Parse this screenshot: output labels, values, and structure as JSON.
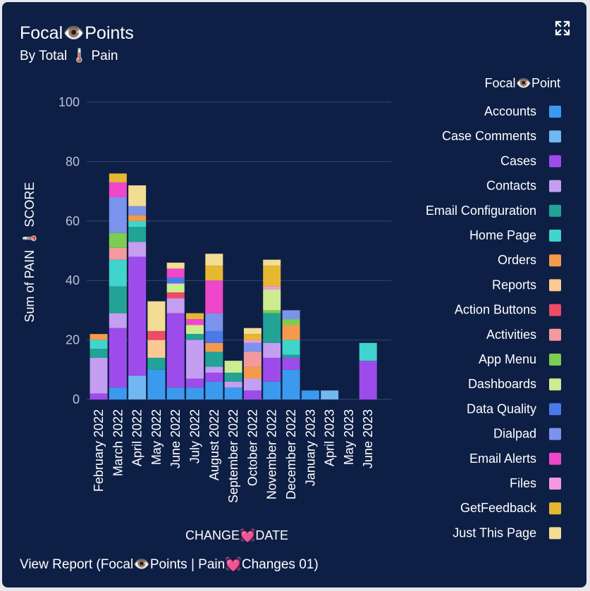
{
  "card": {
    "title": "Focal👁️Points",
    "subtitle": "By Total 🌡️ Pain",
    "expand_icon": "expand-icon",
    "footer_link": "View Report (Focal👁️Points | Pain💓Changes 01)"
  },
  "chart_data": {
    "type": "bar",
    "stacked": true,
    "xlabel": "CHANGE💓DATE",
    "ylabel": "Sum of PAIN 🌡️ SCORE",
    "ylim": [
      0,
      100
    ],
    "yticks": [
      0,
      20,
      40,
      60,
      80,
      100
    ],
    "grid": true,
    "legend_title": "Focal👁️Point",
    "legend_position": "right",
    "categories": [
      "February 2022",
      "March 2022",
      "April 2022",
      "May 2022",
      "June 2022",
      "July 2022",
      "August 2022",
      "September 2022",
      "October 2022",
      "November 2022",
      "December 2022",
      "January 2023",
      "April 2023",
      "May 2023",
      "June 2023"
    ],
    "series": [
      {
        "name": "Accounts",
        "color": "#3b9aee",
        "values": [
          0,
          4,
          0,
          10,
          4,
          4,
          6,
          4,
          0,
          6,
          10,
          3,
          0,
          0,
          0
        ]
      },
      {
        "name": "Case Comments",
        "color": "#71b8f2",
        "values": [
          0,
          0,
          8,
          0,
          0,
          0,
          0,
          0,
          0,
          0,
          0,
          0,
          3,
          0,
          0
        ]
      },
      {
        "name": "Cases",
        "color": "#9d4ceb",
        "values": [
          2,
          20,
          40,
          0,
          25,
          3,
          3,
          0,
          3,
          8,
          4,
          0,
          0,
          0,
          13
        ]
      },
      {
        "name": "Contacts",
        "color": "#c49ef0",
        "values": [
          12,
          5,
          5,
          0,
          5,
          13,
          2,
          2,
          4,
          5,
          0,
          0,
          0,
          0,
          0
        ]
      },
      {
        "name": "Email Configuration",
        "color": "#21a396",
        "values": [
          3,
          9,
          5,
          4,
          0,
          2,
          5,
          3,
          0,
          10,
          1,
          0,
          0,
          0,
          0
        ]
      },
      {
        "name": "Home Page",
        "color": "#40d4cc",
        "values": [
          3,
          9,
          2,
          0,
          0,
          0,
          0,
          0,
          0,
          0,
          5,
          0,
          0,
          0,
          6
        ]
      },
      {
        "name": "Orders",
        "color": "#f59a4c",
        "values": [
          2,
          0,
          2,
          0,
          0,
          0,
          3,
          0,
          4,
          0,
          5,
          0,
          0,
          0,
          0
        ]
      },
      {
        "name": "Reports",
        "color": "#fbc994",
        "values": [
          0,
          0,
          0,
          6,
          0,
          0,
          0,
          0,
          0,
          0,
          0,
          0,
          0,
          0,
          0
        ]
      },
      {
        "name": "Action Buttons",
        "color": "#ee4b65",
        "values": [
          0,
          0,
          0,
          3,
          2,
          0,
          0,
          0,
          0,
          0,
          0,
          0,
          0,
          0,
          0
        ]
      },
      {
        "name": "Activities",
        "color": "#f49a9e",
        "values": [
          0,
          4,
          0,
          0,
          0,
          0,
          0,
          0,
          5,
          0,
          0,
          0,
          0,
          0,
          0
        ]
      },
      {
        "name": "App Menu",
        "color": "#7ccd52",
        "values": [
          0,
          5,
          0,
          0,
          0,
          0,
          0,
          0,
          0,
          1,
          2,
          0,
          0,
          0,
          0
        ]
      },
      {
        "name": "Dashboards",
        "color": "#cdec90",
        "values": [
          0,
          0,
          0,
          0,
          3,
          3,
          0,
          4,
          0,
          7,
          0,
          0,
          0,
          0,
          0
        ]
      },
      {
        "name": "Data Quality",
        "color": "#4c79e8",
        "values": [
          0,
          0,
          0,
          0,
          2,
          0,
          4,
          0,
          0,
          0,
          0,
          0,
          0,
          0,
          0
        ]
      },
      {
        "name": "Dialpad",
        "color": "#7b93ec",
        "values": [
          0,
          12,
          3,
          0,
          0,
          0,
          6,
          0,
          3,
          0,
          3,
          0,
          0,
          0,
          0
        ]
      },
      {
        "name": "Email Alerts",
        "color": "#ef47c9",
        "values": [
          0,
          5,
          0,
          0,
          3,
          2,
          11,
          0,
          0,
          0,
          0,
          0,
          0,
          0,
          0
        ]
      },
      {
        "name": "Files",
        "color": "#f598e0",
        "values": [
          0,
          0,
          0,
          0,
          0,
          0,
          0,
          0,
          1,
          1,
          0,
          0,
          0,
          0,
          0
        ]
      },
      {
        "name": "GetFeedback",
        "color": "#e6b832",
        "values": [
          0,
          3,
          0,
          0,
          0,
          2,
          5,
          0,
          2,
          7,
          0,
          0,
          0,
          0,
          0
        ]
      },
      {
        "name": "Just This Page",
        "color": "#f3dc93",
        "values": [
          0,
          0,
          7,
          10,
          2,
          0,
          4,
          0,
          2,
          2,
          0,
          0,
          0,
          0,
          0
        ]
      }
    ]
  }
}
